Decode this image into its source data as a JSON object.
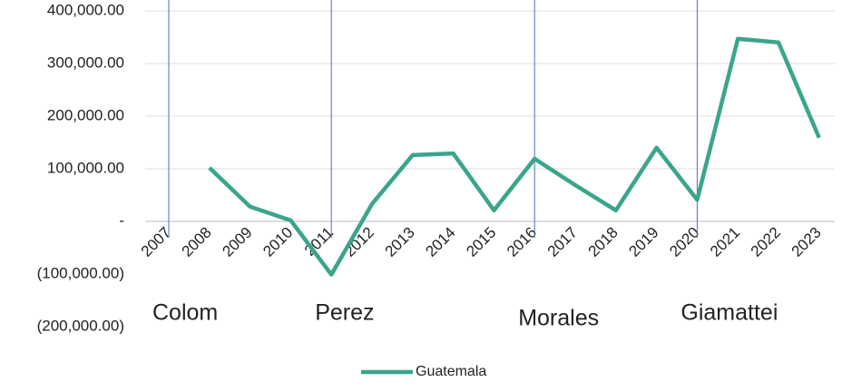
{
  "chart_data": {
    "type": "line",
    "categories": [
      "2007",
      "2008",
      "2009",
      "2010",
      "2011",
      "2012",
      "2013",
      "2014",
      "2015",
      "2016",
      "2017",
      "2018",
      "2019",
      "2020",
      "2021",
      "2022",
      "2023"
    ],
    "series": [
      {
        "name": "Guatemala",
        "color": "#3aa58b",
        "values": [
          null,
          102000,
          28000,
          2000,
          -101000,
          33000,
          126000,
          129000,
          21000,
          119000,
          69000,
          21000,
          140000,
          41000,
          347000,
          340000,
          159000
        ]
      }
    ],
    "ylim": [
      -200000,
      400000
    ],
    "yticks": [
      {
        "value": -200000,
        "label": "(200,000.00)"
      },
      {
        "value": -100000,
        "label": "(100,000.00)"
      },
      {
        "value": 0,
        "label": "-"
      },
      {
        "value": 100000,
        "label": "100,000.00"
      },
      {
        "value": 200000,
        "label": "200,000.00"
      },
      {
        "value": 300000,
        "label": "300,000.00"
      },
      {
        "value": 400000,
        "label": "400,000.00"
      }
    ],
    "grid": true,
    "legend": "bottom",
    "period_starts": [
      "2007",
      "2011",
      "2016",
      "2020"
    ],
    "annotations": [
      "Colom",
      "Perez",
      "Morales",
      "Giamattei"
    ],
    "marker_color": "#4a6fc7"
  }
}
